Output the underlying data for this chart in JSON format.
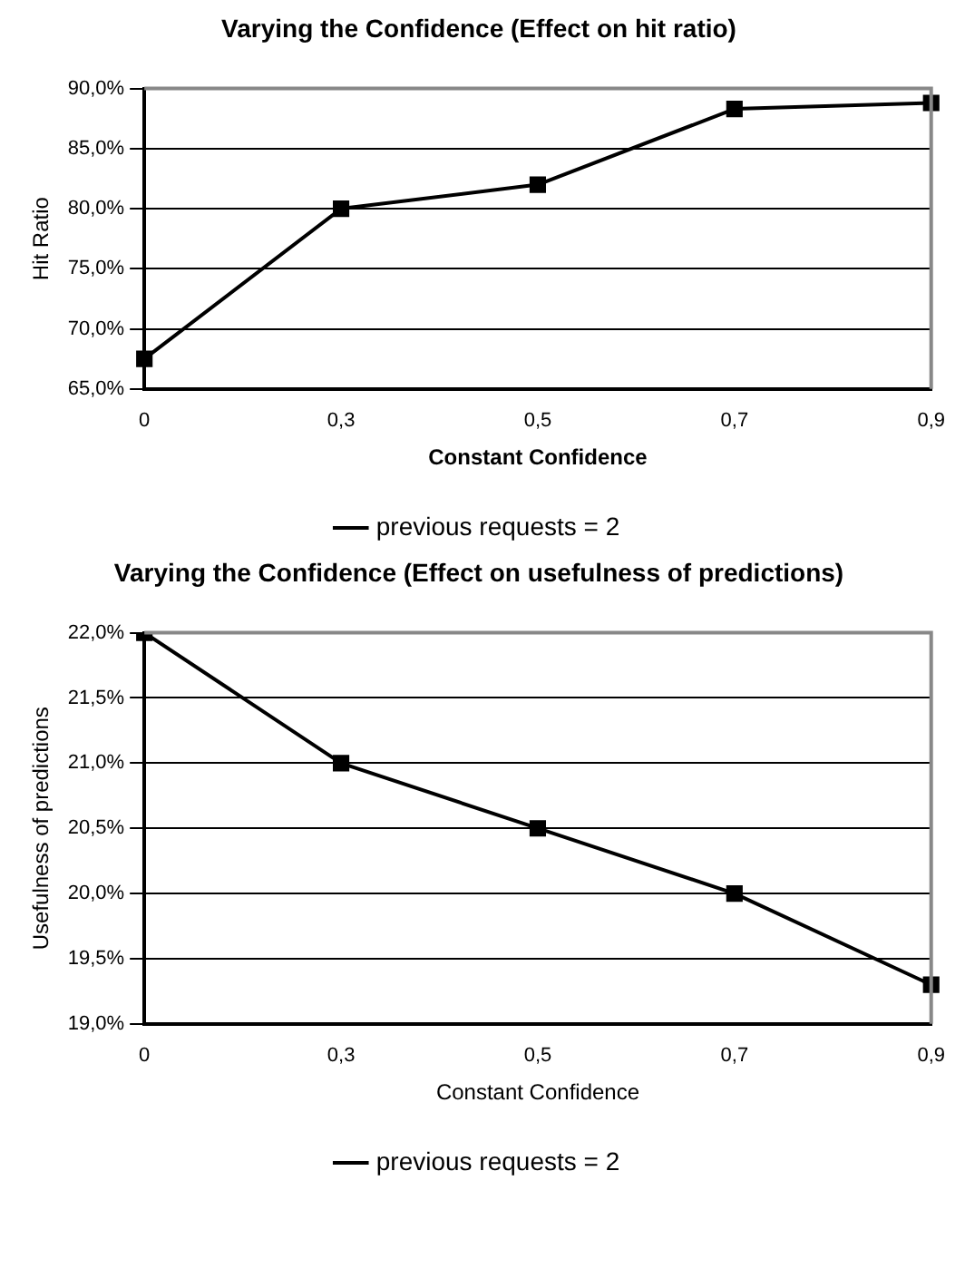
{
  "chart_data": [
    {
      "type": "line",
      "title": "Varying the Confidence (Effect on hit ratio)",
      "xlabel": "Constant Confidence",
      "ylabel": "Hit Ratio",
      "categories": [
        "0",
        "0,3",
        "0,5",
        "0,7",
        "0,9"
      ],
      "series": [
        {
          "name": "previous requests = 2",
          "color": "#000000",
          "values": [
            67.5,
            80,
            82,
            88.3,
            88.8
          ]
        }
      ],
      "ylim": [
        65,
        90
      ],
      "yticks": [
        {
          "value": 65,
          "label": "65,0%"
        },
        {
          "value": 70,
          "label": "70,0%"
        },
        {
          "value": 75,
          "label": "75,0%"
        },
        {
          "value": 80,
          "label": "80,0%"
        },
        {
          "value": 85,
          "label": "85,0%"
        },
        {
          "value": 90,
          "label": "90,0%"
        }
      ],
      "grid": "y",
      "legend": "bottom",
      "marker": "square",
      "line_style": "solid"
    },
    {
      "type": "line",
      "title": "Varying the Confidence (Effect on usefulness of predictions)",
      "xlabel": "Constant Confidence",
      "ylabel": "Usefulness of predictions",
      "categories": [
        "0",
        "0,3",
        "0,5",
        "0,7",
        "0,9"
      ],
      "series": [
        {
          "name": "previous requests = 2",
          "color": "#000000",
          "values": [
            22,
            21,
            20.5,
            20,
            19.3
          ]
        }
      ],
      "ylim": [
        19,
        22
      ],
      "yticks": [
        {
          "value": 19,
          "label": "19,0%"
        },
        {
          "value": 19.5,
          "label": "19,5%"
        },
        {
          "value": 20,
          "label": "20,0%"
        },
        {
          "value": 20.5,
          "label": "20,5%"
        },
        {
          "value": 21,
          "label": "21,0%"
        },
        {
          "value": 21.5,
          "label": "21,5%"
        },
        {
          "value": 22,
          "label": "22,0%"
        }
      ],
      "grid": "y",
      "legend": "bottom",
      "marker": "square",
      "line_style": "solid"
    }
  ]
}
